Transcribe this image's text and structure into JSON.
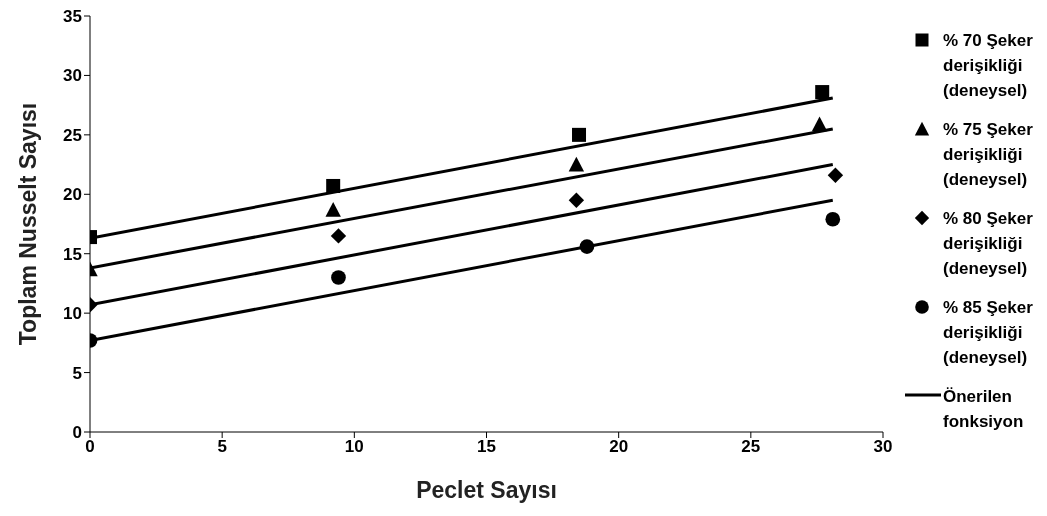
{
  "chart_data": {
    "type": "scatter",
    "xlabel": "Peclet Sayısı",
    "ylabel": "Toplam Nusselt Sayısı",
    "xlim": [
      0,
      30
    ],
    "xticks": [
      0,
      5,
      10,
      15,
      20,
      25,
      30
    ],
    "ylim": [
      0,
      35
    ],
    "yticks": [
      0,
      5,
      10,
      15,
      20,
      25,
      30,
      35
    ],
    "grid": false,
    "legend": "right",
    "series": [
      {
        "name": "% 70 Şeker derişikliği (deneysel)",
        "marker": "square",
        "color": "#000000",
        "x": [
          0,
          9.2,
          18.5,
          27.7
        ],
        "values": [
          16.4,
          20.7,
          25.0,
          28.6
        ]
      },
      {
        "name": "% 75 Şeker derişikliği (deneysel)",
        "marker": "triangle",
        "color": "#000000",
        "x": [
          0,
          9.2,
          18.4,
          27.6
        ],
        "values": [
          13.7,
          18.7,
          22.5,
          25.9
        ]
      },
      {
        "name": "% 80 Şeker derişikliği (deneysel)",
        "marker": "diamond",
        "color": "#000000",
        "x": [
          0,
          9.4,
          18.4,
          28.2
        ],
        "values": [
          10.7,
          16.5,
          19.5,
          21.6
        ]
      },
      {
        "name": "% 85 Şeker derişikliği (deneysel)",
        "marker": "circle",
        "color": "#000000",
        "x": [
          0,
          9.4,
          18.8,
          28.1
        ],
        "values": [
          7.7,
          13.0,
          15.6,
          17.9
        ]
      },
      {
        "name": "Önerilen fonksiyon",
        "type": "line",
        "marker": "none",
        "color": "#000000",
        "x": [
          0,
          28.1
        ],
        "values": [
          16.3,
          28.1
        ]
      },
      {
        "type": "line",
        "marker": "none",
        "color": "#000000",
        "x": [
          0,
          28.1
        ],
        "values": [
          13.8,
          25.5
        ]
      },
      {
        "type": "line",
        "marker": "none",
        "color": "#000000",
        "x": [
          0,
          28.1
        ],
        "values": [
          10.7,
          22.5
        ]
      },
      {
        "type": "line",
        "marker": "none",
        "color": "#000000",
        "x": [
          0,
          28.1
        ],
        "values": [
          7.7,
          19.5
        ]
      }
    ]
  }
}
